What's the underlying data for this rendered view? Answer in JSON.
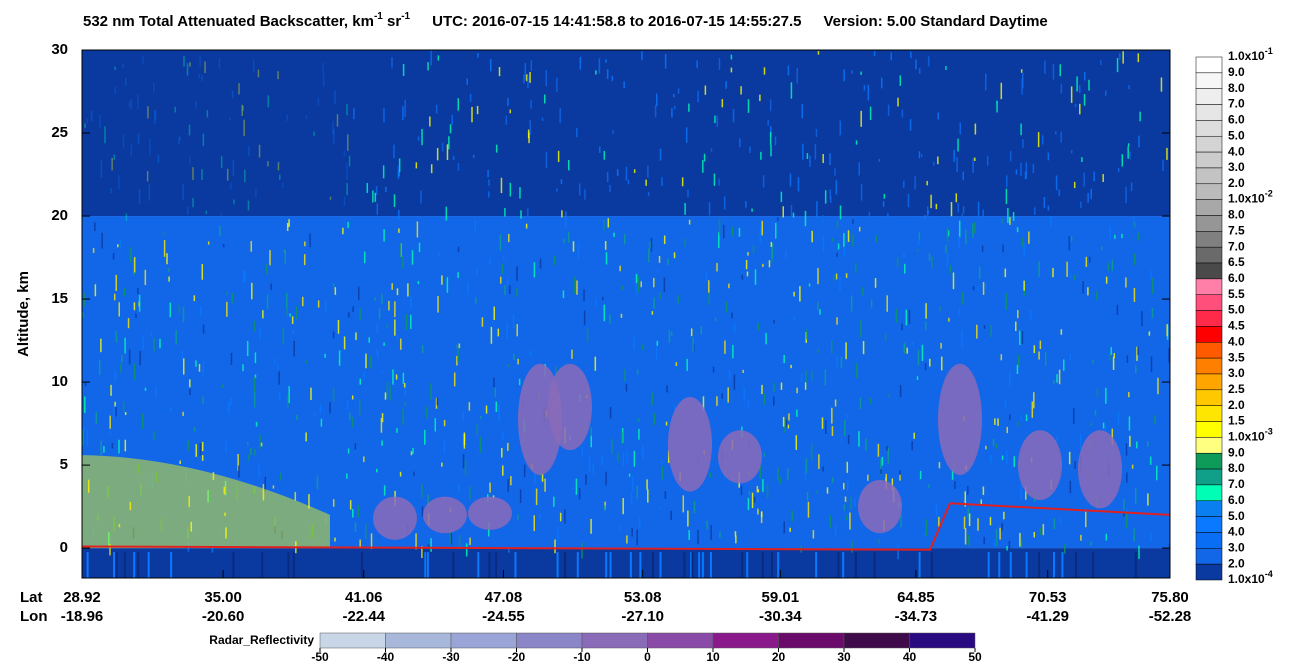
{
  "chart_data": {
    "type": "curtain",
    "title": {
      "product": "532 nm Total Attenuated Backscatter, km",
      "unit_exp1": "-1",
      "unit_sr": " sr",
      "unit_exp2": "-1",
      "time": "UTC:  2016-07-15 14:41:58.8  to  2016-07-15 14:55:27.5",
      "version": "Version: 5.00  Standard  Daytime"
    },
    "ylabel": "Altitude, km",
    "ylim": [
      -1.8,
      30
    ],
    "yticks": [
      0,
      5,
      10,
      15,
      20,
      25,
      30
    ],
    "x_row_labels": [
      "Lat",
      "Lon"
    ],
    "xlim": [
      28.92,
      75.8
    ],
    "xticks": [
      {
        "value": 28.92,
        "label": "28.92",
        "lon": "-18.96"
      },
      {
        "value": 35.0,
        "label": "35.00",
        "lon": "-20.60"
      },
      {
        "value": 41.06,
        "label": "41.06",
        "lon": "-22.44"
      },
      {
        "value": 47.08,
        "label": "47.08",
        "lon": "-24.55"
      },
      {
        "value": 53.08,
        "label": "53.08",
        "lon": "-27.10"
      },
      {
        "value": 59.01,
        "label": "59.01",
        "lon": "-30.34"
      },
      {
        "value": 64.85,
        "label": "64.85",
        "lon": "-34.73"
      },
      {
        "value": 70.53,
        "label": "70.53",
        "lon": "-41.29"
      },
      {
        "value": 75.8,
        "label": "75.80",
        "lon": "-52.28"
      }
    ],
    "colorbar": {
      "labels": [
        {
          "mantissa": "1.0x10",
          "exponent": "-1"
        },
        "9.0",
        "8.0",
        "7.0",
        "6.0",
        "5.0",
        "4.0",
        "3.0",
        "2.0",
        {
          "mantissa": "1.0x10",
          "exponent": "-2"
        },
        "8.0",
        "7.5",
        "7.0",
        "6.5",
        "6.0",
        "5.5",
        "5.0",
        "4.5",
        "4.0",
        "3.5",
        "3.0",
        "2.5",
        "2.0",
        "1.5",
        {
          "mantissa": "1.0x10",
          "exponent": "-3"
        },
        "9.0",
        "8.0",
        "7.0",
        "6.0",
        "5.0",
        "4.0",
        "3.0",
        "2.0",
        {
          "mantissa": "1.0x10",
          "exponent": "-4"
        }
      ],
      "colors": [
        "#ffffff",
        "#f7f7f7",
        "#eeeeee",
        "#e6e6e6",
        "#dddddd",
        "#d4d4d4",
        "#cccccc",
        "#c3c3c3",
        "#bbbbbb",
        "#a8a8a8",
        "#969696",
        "#808080",
        "#6a6a6a",
        "#4a4a4a",
        "#ff7fa8",
        "#ff4f7a",
        "#ff2a4a",
        "#ff0000",
        "#ff5a00",
        "#ff7f00",
        "#ffa500",
        "#ffc800",
        "#ffe600",
        "#ffff00",
        "#ffff80",
        "#0e9a58",
        "#10a08a",
        "#00ffb4",
        "#0a7ff0",
        "#0a78ff",
        "#0a6ef5",
        "#1266e8",
        "#0a3aa0"
      ]
    },
    "radar": {
      "label": "Radar_Reflectivity",
      "ticks": [
        -50,
        -40,
        -30,
        -20,
        -10,
        0,
        10,
        20,
        30,
        40,
        50
      ],
      "colors": [
        "#c8d6e8",
        "#a8b8db",
        "#9aa4d6",
        "#8a86c8",
        "#8a6bb8",
        "#8a4aa8",
        "#8a1a8c",
        "#6a0a6a",
        "#3e0a4a",
        "#2a0a80"
      ]
    }
  }
}
